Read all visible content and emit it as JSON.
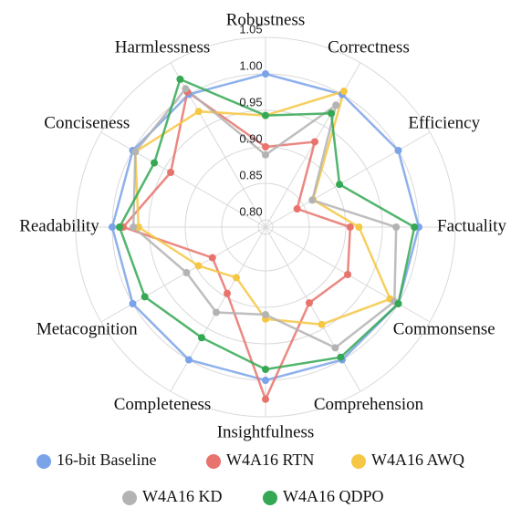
{
  "chart_data": {
    "type": "radar",
    "categories": [
      "Robustness",
      "Correctness",
      "Efficiency",
      "Factuality",
      "Commonsense",
      "Comprehension",
      "Insightfulness",
      "Completeness",
      "Metacognition",
      "Readability",
      "Conciseness",
      "Harmlessness"
    ],
    "rlim": [
      0.79,
      1.05
    ],
    "rticks": [
      {
        "value": 0.8,
        "label": "0.80"
      },
      {
        "value": 0.85,
        "label": "0.85"
      },
      {
        "value": 0.9,
        "label": "0.90"
      },
      {
        "value": 0.95,
        "label": "0.95"
      },
      {
        "value": 1.0,
        "label": "1.00"
      },
      {
        "value": 1.05,
        "label": "1.05"
      }
    ],
    "grid": true,
    "legend": "bottom",
    "series": [
      {
        "name": "16-bit Baseline",
        "color": "#7ba3e8",
        "values": [
          1.0,
          1.0,
          1.0,
          1.0,
          1.0,
          1.0,
          1.0,
          1.0,
          1.0,
          1.0,
          1.0,
          1.0
        ]
      },
      {
        "name": "W4A16 RTN",
        "color": "#e8736c",
        "values": [
          0.9,
          0.925,
          0.84,
          0.906,
          0.92,
          0.91,
          1.026,
          0.895,
          0.874,
          0.985,
          0.94,
          1.004
        ]
      },
      {
        "name": "W4A16 AWQ",
        "color": "#f6c744",
        "values": [
          0.943,
          1.005,
          0.865,
          0.918,
          0.987,
          0.944,
          0.916,
          0.87,
          0.896,
          0.964,
          0.996,
          0.973
        ]
      },
      {
        "name": "W4A16 KD",
        "color": "#b3b3b3",
        "values": [
          0.889,
          0.983,
          0.864,
          0.969,
          0.994,
          0.981,
          0.91,
          0.925,
          0.915,
          0.971,
          0.996,
          1.009
        ]
      },
      {
        "name": "W4A16 QDPO",
        "color": "#34a853",
        "values": [
          0.943,
          0.97,
          0.907,
          0.994,
          1.0,
          0.996,
          0.985,
          0.965,
          0.981,
          0.99,
          0.966,
          1.024
        ]
      }
    ]
  }
}
